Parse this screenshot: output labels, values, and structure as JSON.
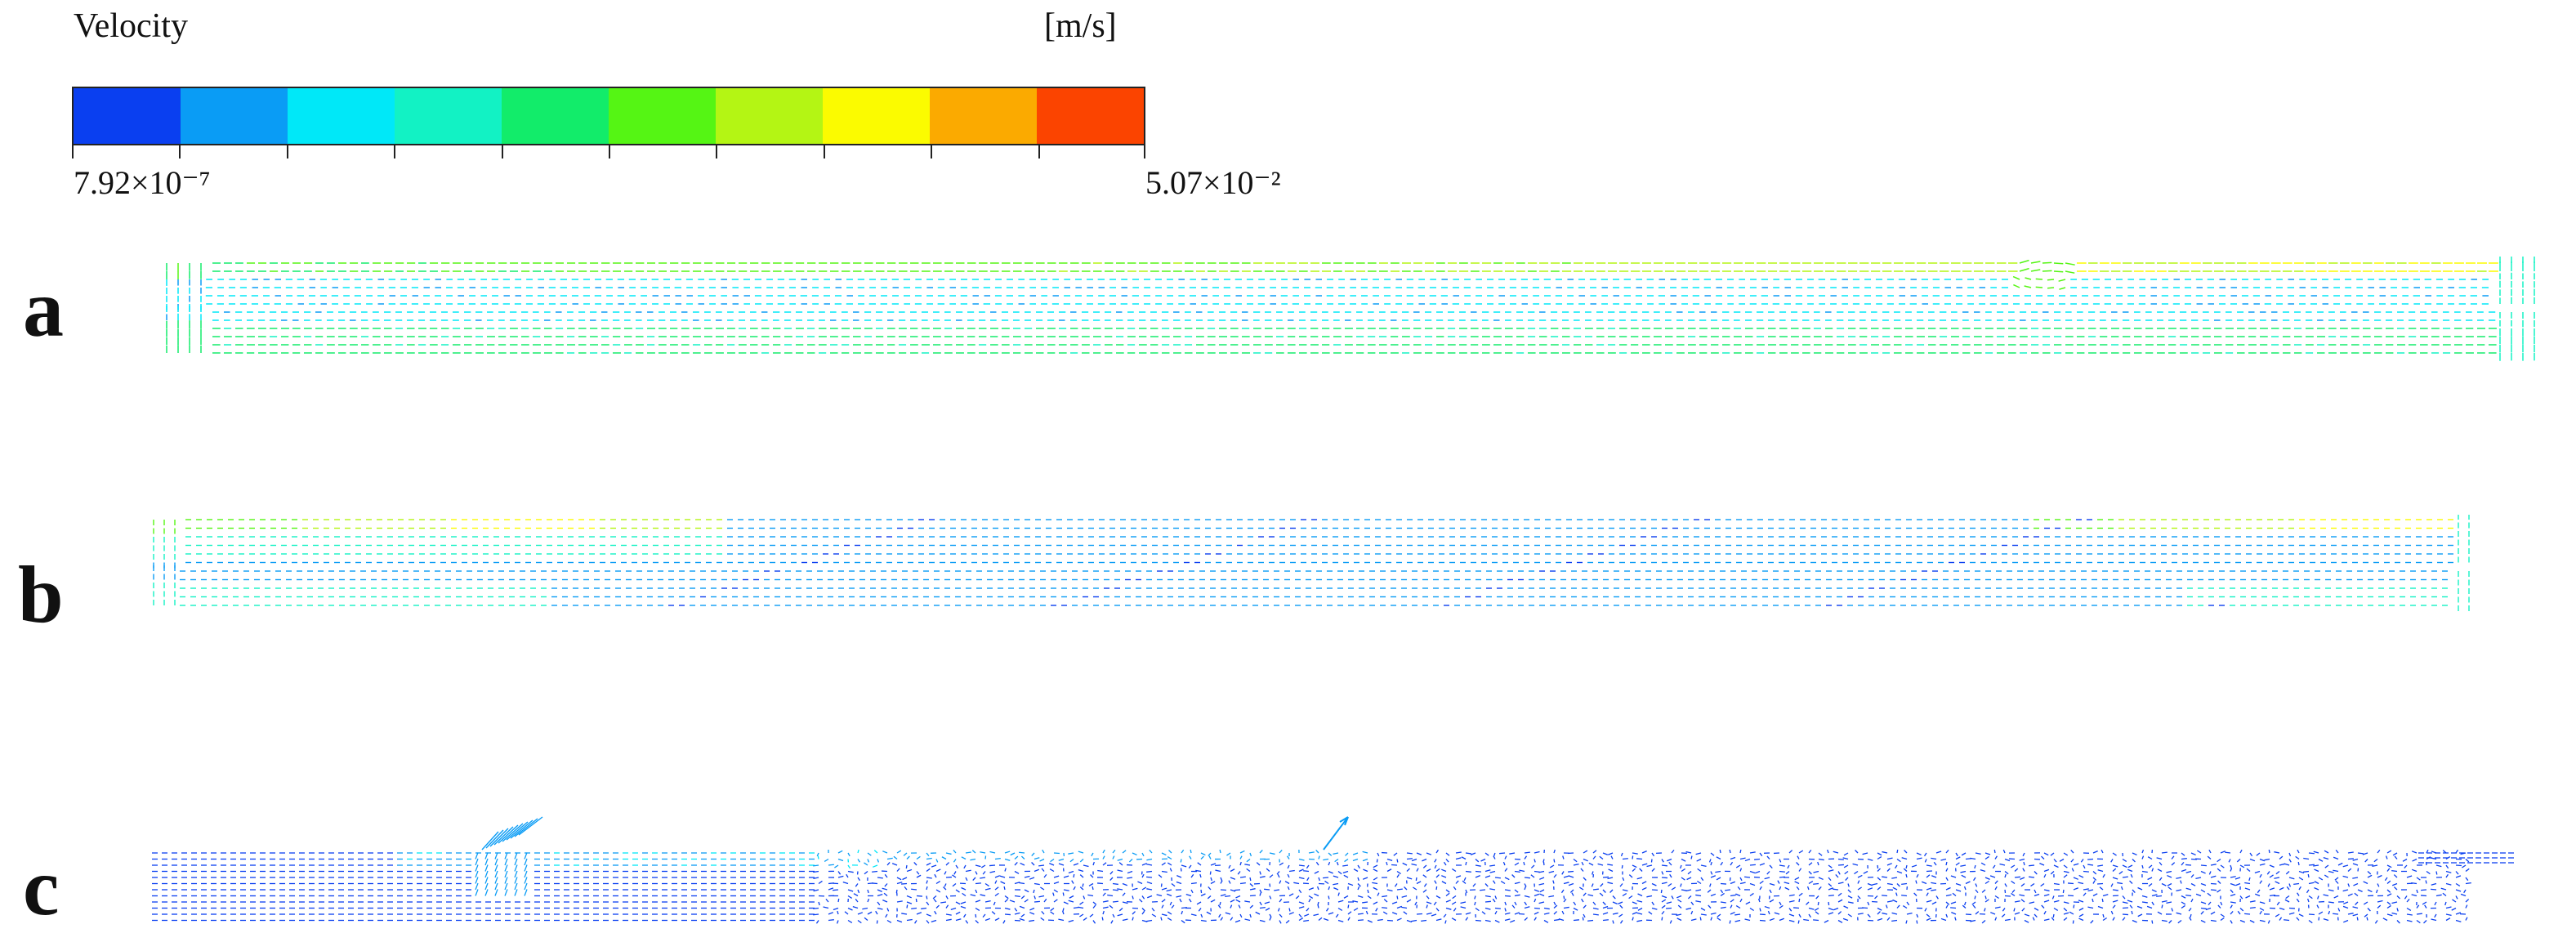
{
  "legend": {
    "title": "Velocity",
    "unit": "[m/s]",
    "min_label": "7.92×10⁻⁷",
    "max_label": "5.07×10⁻²",
    "colors": [
      "#0a3ff0",
      "#0a9cf5",
      "#00e8f8",
      "#12f2c4",
      "#12ec6a",
      "#55f514",
      "#b4f514",
      "#fbfb00",
      "#fbaa00",
      "#fb4400"
    ]
  },
  "panels": [
    {
      "label": "a",
      "key": "a"
    },
    {
      "label": "b",
      "key": "b"
    },
    {
      "label": "c",
      "key": "c"
    }
  ]
}
